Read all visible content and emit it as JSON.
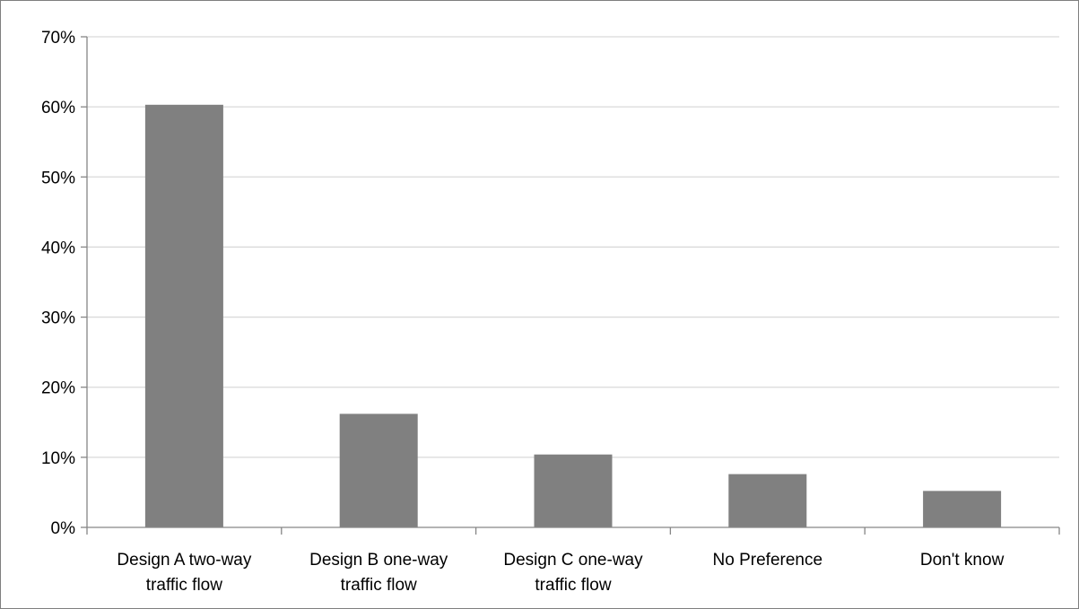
{
  "chart_data": {
    "type": "bar",
    "title": "",
    "xlabel": "",
    "ylabel": "",
    "categories": [
      [
        "Design A two-way",
        "traffic flow"
      ],
      [
        "Design B one-way",
        "traffic flow"
      ],
      [
        "Design C one-way",
        "traffic flow"
      ],
      [
        "No Preference"
      ],
      [
        "Don't know"
      ]
    ],
    "values": [
      60.3,
      16.2,
      10.4,
      7.6,
      5.2
    ],
    "ylim": [
      0,
      70
    ],
    "yticks": [
      0,
      10,
      20,
      30,
      40,
      50,
      60,
      70
    ],
    "ytick_labels": [
      "0%",
      "10%",
      "20%",
      "30%",
      "40%",
      "50%",
      "60%",
      "70%"
    ],
    "grid": true,
    "legend": "none",
    "bar_color": "#808080",
    "grid_color": "#d9d9d9",
    "axis_color": "#868686"
  }
}
